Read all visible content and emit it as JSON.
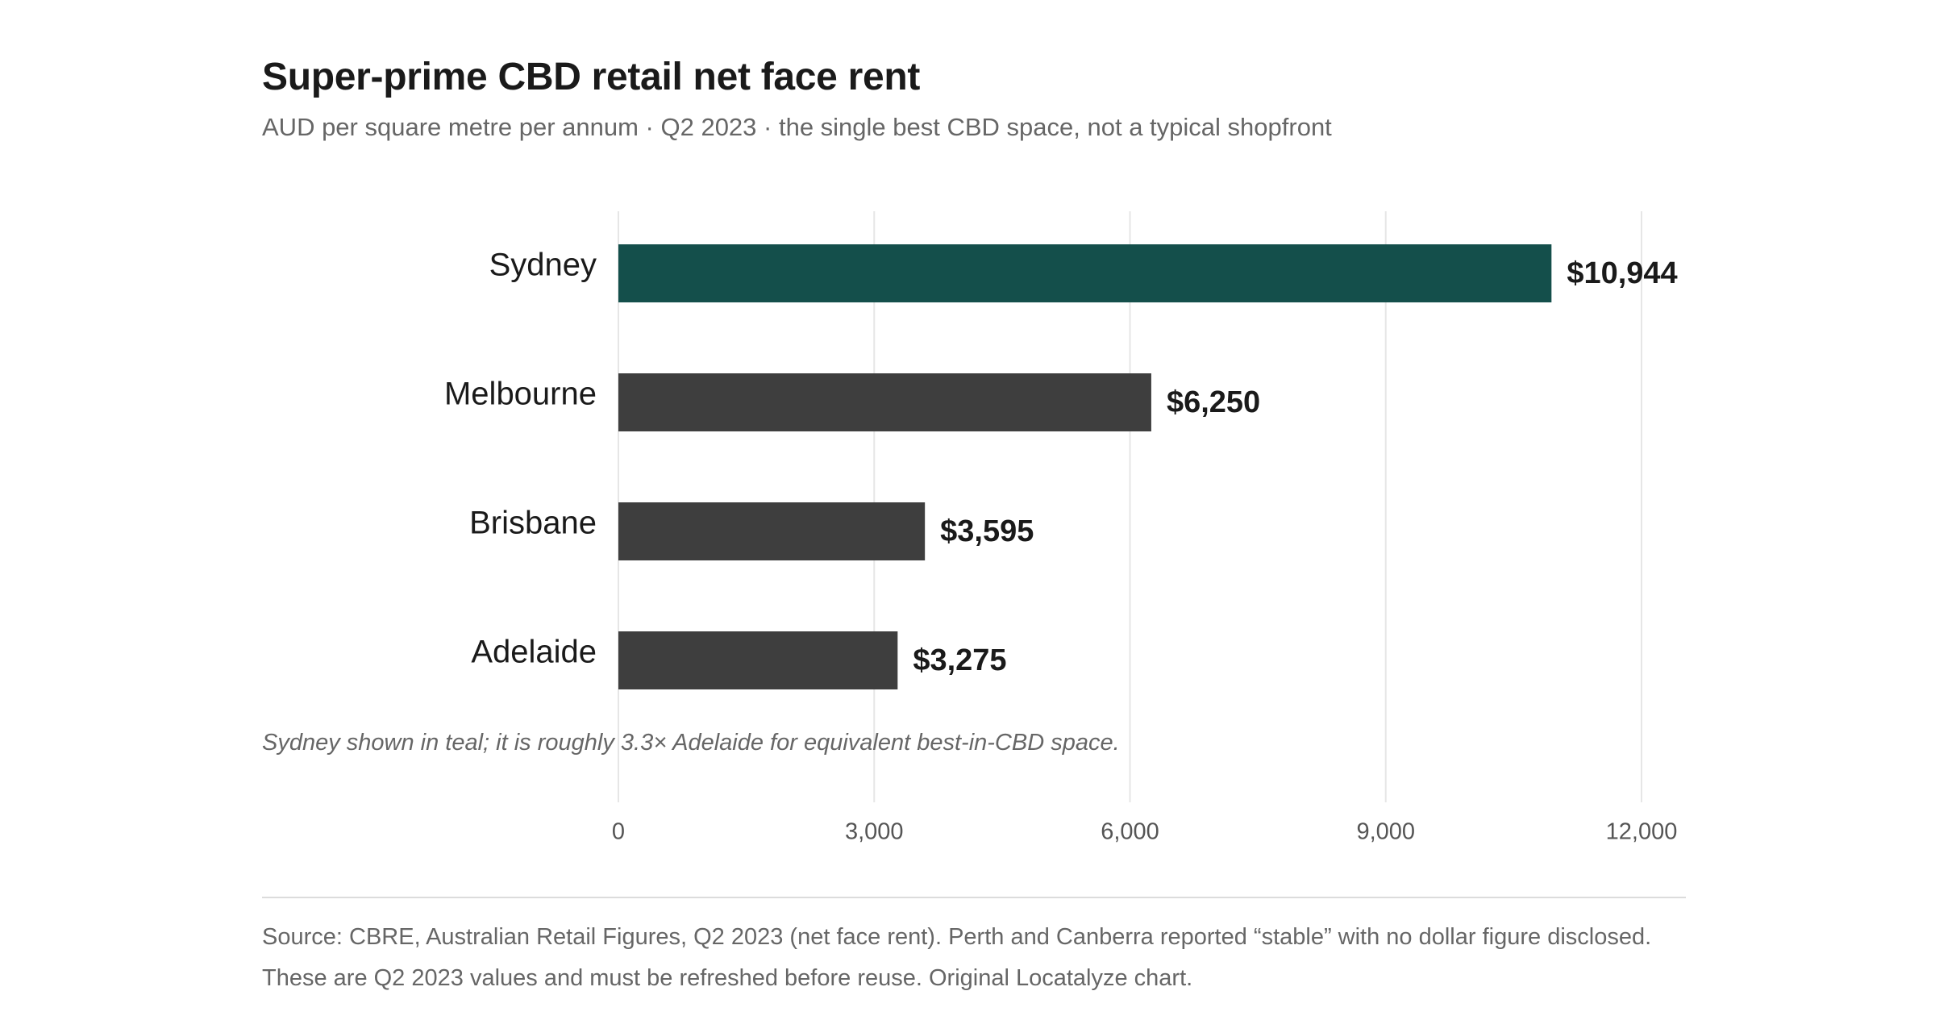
{
  "header": {
    "title": "Super-prime CBD retail net face rent",
    "subtitle": "AUD per square metre per annum · Q2 2023 · the single best CBD space, not a typical shopfront"
  },
  "chart_data": {
    "type": "bar",
    "orientation": "horizontal",
    "categories": [
      "Sydney",
      "Melbourne",
      "Brisbane",
      "Adelaide"
    ],
    "values": [
      10944,
      6250,
      3595,
      3275
    ],
    "value_labels": [
      "$10,944",
      "$6,250",
      "$3,595",
      "$3,275"
    ],
    "highlight": "Sydney",
    "colors": {
      "highlight": "#144f4b",
      "default": "#3e3e3e",
      "grid": "#e6e6e6",
      "axis_text": "#555555"
    },
    "xlim": [
      0,
      12000
    ],
    "xticks": [
      0,
      3000,
      6000,
      9000,
      12000
    ],
    "xtick_labels": [
      "0",
      "3,000",
      "6,000",
      "9,000",
      "12,000"
    ],
    "grid": true
  },
  "note": "Sydney shown in teal; it is roughly 3.3× Adelaide for equivalent best-in-CBD space.",
  "footer": {
    "source_line1": "Source: CBRE, Australian Retail Figures, Q2 2023 (net face rent). Perth and Canberra reported “stable” with no dollar figure disclosed.",
    "source_line2": "These are Q2 2023 values and must be refreshed before reuse. Original Locatalyze chart."
  }
}
